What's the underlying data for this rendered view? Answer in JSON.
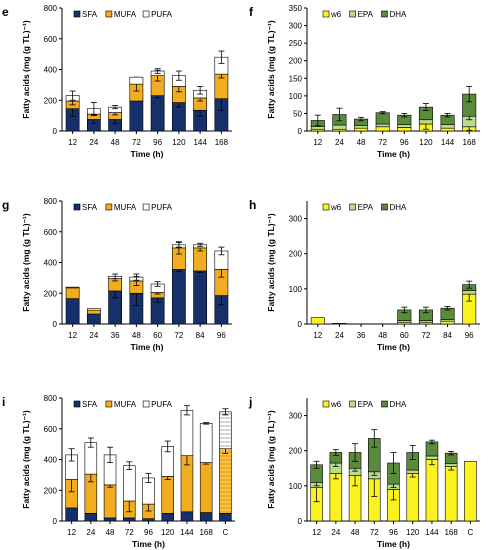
{
  "colors": {
    "SFA": "#16306b",
    "MUFA": "#f1ad1f",
    "PUFA": "#ffffff",
    "w6": "#fbf21f",
    "EPA": "#b8dc8a",
    "DHA": "#5a8a3c"
  },
  "chart_data": [
    {
      "id": "e",
      "label": "e",
      "type": "bar",
      "stacked": true,
      "ylabel": "Fatty acids (mg (g TL)⁻¹)",
      "xlabel": "Time (h)",
      "ylim": [
        0,
        800
      ],
      "yticks": [
        0,
        200,
        400,
        600,
        800
      ],
      "categories": [
        "12",
        "24",
        "48",
        "72",
        "96",
        "120",
        "144",
        "168"
      ],
      "legend_position": "top",
      "series": [
        {
          "name": "SFA",
          "values": [
            145,
            75,
            75,
            195,
            230,
            185,
            135,
            210
          ],
          "err": [
            50,
            25,
            25,
            0,
            15,
            30,
            40,
            75
          ],
          "color_key": "SFA"
        },
        {
          "name": "MUFA",
          "values": [
            50,
            35,
            45,
            110,
            130,
            105,
            80,
            160
          ],
          "err": [
            25,
            10,
            15,
            45,
            35,
            35,
            20,
            25
          ],
          "color_key": "MUFA"
        },
        {
          "name": "PUFA",
          "values": [
            35,
            35,
            35,
            45,
            30,
            70,
            50,
            110
          ],
          "err": [
            30,
            40,
            10,
            0,
            15,
            30,
            25,
            40
          ],
          "color_key": "PUFA"
        }
      ]
    },
    {
      "id": "f",
      "label": "f",
      "type": "bar",
      "stacked": true,
      "ylabel": "Fatty acids (mg (g TL)⁻¹)",
      "xlabel": "Time (h)",
      "ylim": [
        0,
        350
      ],
      "yticks": [
        0,
        50,
        100,
        150,
        200,
        250,
        300,
        350
      ],
      "categories": [
        "12",
        "24",
        "48",
        "72",
        "96",
        "120",
        "144",
        "168"
      ],
      "legend_position": "top",
      "series": [
        {
          "name": "w6",
          "values": [
            5,
            5,
            8,
            12,
            10,
            20,
            8,
            12
          ],
          "err": [
            0,
            0,
            0,
            0,
            0,
            15,
            0,
            10
          ],
          "color_key": "w6"
        },
        {
          "name": "EPA",
          "values": [
            8,
            12,
            8,
            8,
            8,
            12,
            10,
            30
          ],
          "err": [
            0,
            0,
            0,
            0,
            0,
            0,
            0,
            10
          ],
          "color_key": "EPA"
        },
        {
          "name": "DHA",
          "values": [
            17,
            30,
            18,
            32,
            27,
            36,
            27,
            63
          ],
          "err": [
            15,
            18,
            5,
            3,
            5,
            10,
            5,
            22
          ],
          "color_key": "DHA"
        }
      ]
    },
    {
      "id": "g",
      "label": "g",
      "type": "bar",
      "stacked": true,
      "ylabel": "Fatty acids (mg (g TL)⁻¹)",
      "xlabel": "Time (h)",
      "ylim": [
        0,
        800
      ],
      "yticks": [
        0,
        200,
        400,
        600,
        800
      ],
      "categories": [
        "12",
        "24",
        "36",
        "48",
        "60",
        "72",
        "84",
        "96"
      ],
      "legend_position": "top",
      "series": [
        {
          "name": "SFA",
          "values": [
            165,
            65,
            215,
            200,
            170,
            355,
            345,
            185
          ],
          "err": [
            0,
            0,
            45,
            80,
            30,
            15,
            10,
            60
          ],
          "color_key": "SFA"
        },
        {
          "name": "MUFA",
          "values": [
            70,
            25,
            80,
            80,
            35,
            140,
            150,
            170
          ],
          "err": [
            0,
            0,
            15,
            30,
            10,
            40,
            20,
            50
          ],
          "color_key": "MUFA"
        },
        {
          "name": "PUFA",
          "values": [
            5,
            10,
            15,
            25,
            55,
            20,
            20,
            120
          ],
          "err": [
            0,
            0,
            15,
            20,
            15,
            15,
            10,
            25
          ],
          "color_key": "PUFA"
        }
      ]
    },
    {
      "id": "h",
      "label": "h",
      "type": "bar",
      "stacked": true,
      "ylabel": "Fatty acids (mg (g TL)⁻¹)",
      "xlabel": "Time (h)",
      "ylim": [
        0,
        350
      ],
      "yticks": [
        0,
        100,
        200,
        300
      ],
      "categories": [
        "12",
        "24",
        "36",
        "48",
        "60",
        "72",
        "84",
        "96"
      ],
      "legend_position": "top",
      "series": [
        {
          "name": "w6",
          "values": [
            18,
            2,
            0,
            0,
            5,
            5,
            8,
            85
          ],
          "err": [
            0,
            0,
            0,
            0,
            0,
            0,
            0,
            20
          ],
          "color_key": "w6"
        },
        {
          "name": "EPA",
          "values": [
            0,
            0,
            0,
            0,
            5,
            5,
            5,
            10
          ],
          "err": [
            0,
            0,
            0,
            0,
            0,
            0,
            0,
            0
          ],
          "color_key": "EPA"
        },
        {
          "name": "DHA",
          "values": [
            0,
            0,
            0,
            0,
            30,
            30,
            32,
            17
          ],
          "err": [
            0,
            0,
            0,
            0,
            8,
            8,
            5,
            10
          ],
          "color_key": "DHA"
        }
      ]
    },
    {
      "id": "i",
      "label": "i",
      "type": "bar",
      "stacked": true,
      "ylabel": "Fatty acids (mg (g TL)⁻¹)",
      "xlabel": "Time (h)",
      "ylim": [
        0,
        800
      ],
      "yticks": [
        0,
        200,
        400,
        600,
        800
      ],
      "categories": [
        "12",
        "24",
        "48",
        "72",
        "96",
        "120",
        "144",
        "168",
        "C"
      ],
      "legend_position": "top",
      "series": [
        {
          "name": "SFA",
          "values": [
            85,
            50,
            20,
            20,
            15,
            50,
            60,
            55,
            50
          ],
          "err": [
            0,
            0,
            0,
            0,
            0,
            0,
            0,
            0,
            0
          ],
          "color_key": "SFA"
        },
        {
          "name": "MUFA",
          "values": [
            185,
            255,
            215,
            110,
            95,
            240,
            365,
            325,
            420
          ],
          "err": [
            80,
            50,
            15,
            70,
            45,
            20,
            60,
            10,
            30
          ],
          "color_key": "MUFA"
        },
        {
          "name": "PUFA",
          "values": [
            160,
            205,
            195,
            230,
            170,
            195,
            295,
            255,
            240
          ],
          "err": [
            40,
            30,
            50,
            25,
            30,
            35,
            30,
            5,
            20
          ],
          "color_key": "PUFA"
        }
      ]
    },
    {
      "id": "j",
      "label": "j",
      "type": "bar",
      "stacked": true,
      "ylabel": "Fatty acids (mg (g TL)⁻¹)",
      "xlabel": "Time (h)",
      "ylim": [
        0,
        350
      ],
      "yticks": [
        0,
        100,
        200,
        300
      ],
      "categories": [
        "12",
        "24",
        "48",
        "72",
        "96",
        "120",
        "144",
        "168",
        "C"
      ],
      "legend_position": "top",
      "series": [
        {
          "name": "w6",
          "values": [
            95,
            135,
            130,
            120,
            90,
            135,
            175,
            155,
            170
          ],
          "err": [
            40,
            15,
            30,
            50,
            30,
            10,
            15,
            10,
            0
          ],
          "color_key": "w6"
        },
        {
          "name": "EPA",
          "values": [
            15,
            30,
            20,
            20,
            15,
            10,
            10,
            8,
            0
          ],
          "err": [
            10,
            10,
            8,
            10,
            10,
            0,
            0,
            0,
            0
          ],
          "color_key": "EPA"
        },
        {
          "name": "DHA",
          "values": [
            50,
            30,
            45,
            95,
            60,
            50,
            40,
            30,
            0
          ],
          "err": [
            10,
            8,
            25,
            25,
            30,
            20,
            5,
            5,
            0
          ],
          "color_key": "DHA"
        }
      ]
    }
  ]
}
